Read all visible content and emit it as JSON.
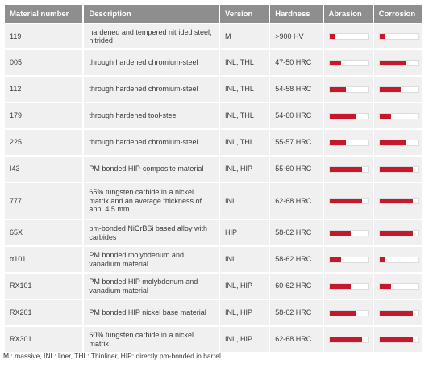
{
  "headers": [
    "Material number",
    "Description",
    "Version",
    "Hardness",
    "Abrasion",
    "Corrosion"
  ],
  "rows": [
    {
      "material": "119",
      "description": "hardened and tempered nitrided steel, nitrided",
      "version": "M",
      "hardness": ">900 HV",
      "abrasion": 0.15,
      "corrosion": 0.15
    },
    {
      "material": "005",
      "description": "through hardened chromium-steel",
      "version": "INL, THL",
      "hardness": "47-50 HRC",
      "abrasion": 0.3,
      "corrosion": 0.7
    },
    {
      "material": "112",
      "description": "through hardened chromium-steel",
      "version": "INL, THL",
      "hardness": "54-58 HRC",
      "abrasion": 0.42,
      "corrosion": 0.55
    },
    {
      "material": "179",
      "description": "through hardened tool-steel",
      "version": "INL, THL",
      "hardness": "54-60 HRC",
      "abrasion": 0.7,
      "corrosion": 0.3
    },
    {
      "material": "225",
      "description": "through hardened chromium-steel",
      "version": "INL, THL",
      "hardness": "55-57 HRC",
      "abrasion": 0.42,
      "corrosion": 0.7
    },
    {
      "material": "I43",
      "description": "PM bonded HIP-composite material",
      "version": "INL, HIP",
      "hardness": "55-60 HRC",
      "abrasion": 0.85,
      "corrosion": 0.85
    },
    {
      "material": "777",
      "description": "65% tungsten carbide in a nickel matrix and an average thickness of app. 4.5 mm",
      "version": "INL",
      "hardness": "62-68 HRC",
      "abrasion": 0.85,
      "corrosion": 0.85
    },
    {
      "material": "65X",
      "description": "pm-bonded NiCrBSi based alloy with carbides",
      "version": "HIP",
      "hardness": "58-62 HRC",
      "abrasion": 0.55,
      "corrosion": 0.85
    },
    {
      "material": "α101",
      "description": "PM bonded molybdenum and vanadium material",
      "version": "INL",
      "hardness": "58-62 HRC",
      "abrasion": 0.3,
      "corrosion": 0.15
    },
    {
      "material": "RX101",
      "description": "PM bonded HIP molybdenum and vanadium material",
      "version": "INL, HIP",
      "hardness": "60-62 HRC",
      "abrasion": 0.55,
      "corrosion": 0.3
    },
    {
      "material": "RX201",
      "description": "PM bonded HIP nickel base material",
      "version": "INL, HIP",
      "hardness": "58-62 HRC",
      "abrasion": 0.7,
      "corrosion": 0.85
    },
    {
      "material": "RX301",
      "description": "50% tungsten carbide in a nickel matrix",
      "version": "INL, HIP",
      "hardness": "62-68 HRC",
      "abrasion": 0.85,
      "corrosion": 0.85
    }
  ],
  "footnote": "M : massive, INL: liner, THL: Thinliner, HIP: directly pm-bonded in barrel",
  "colors": {
    "header_bg": "#8e8e8e",
    "row_bg": "#f0f0f0",
    "bar_fill": "#c6172c"
  }
}
